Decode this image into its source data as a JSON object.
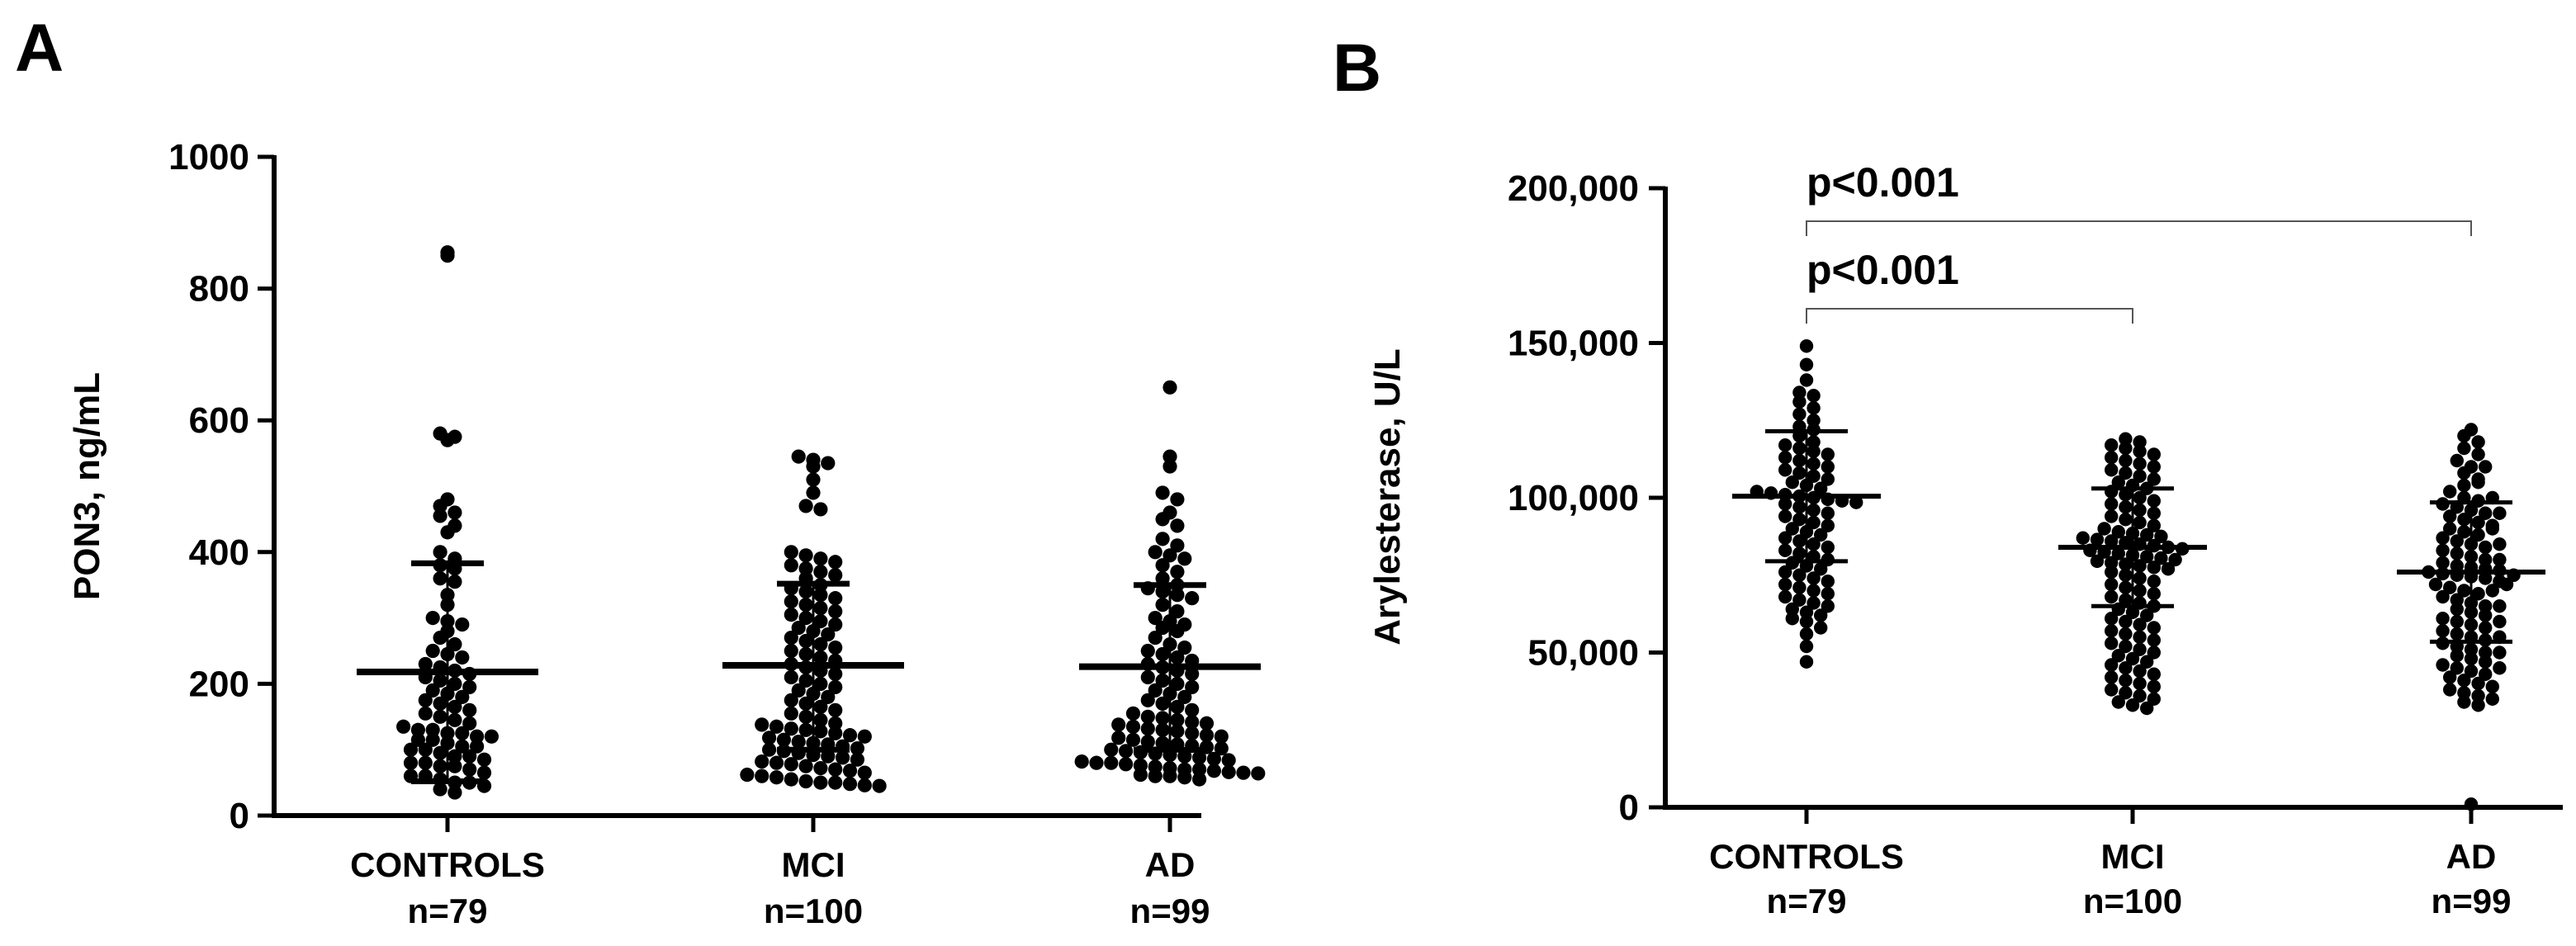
{
  "figure": {
    "panel_a_label": "A",
    "panel_b_label": "B"
  },
  "chart_data": [
    {
      "type": "scatter",
      "panel": "A",
      "title": "",
      "xlabel": "",
      "ylabel": "PON3, ng/mL",
      "ylim": [
        0,
        1000
      ],
      "yticks": [
        0,
        200,
        400,
        600,
        800,
        1000
      ],
      "ytick_labels": [
        "0",
        "200",
        "400",
        "600",
        "800",
        "1000"
      ],
      "categories": [
        "CONTROLS",
        "MCI",
        "AD"
      ],
      "n_labels": [
        "n=79",
        "n=100",
        "n=99"
      ],
      "groups": [
        {
          "name": "CONTROLS",
          "n": 79,
          "mean": 218,
          "sd_upper": 383,
          "sd_lower": 52,
          "values": [
            855,
            850,
            580,
            575,
            570,
            480,
            470,
            460,
            455,
            440,
            430,
            400,
            390,
            380,
            375,
            360,
            355,
            335,
            320,
            300,
            295,
            290,
            280,
            270,
            260,
            250,
            245,
            240,
            230,
            225,
            220,
            215,
            210,
            205,
            200,
            195,
            190,
            185,
            180,
            175,
            170,
            165,
            160,
            155,
            150,
            145,
            140,
            135,
            130,
            130,
            125,
            125,
            120,
            120,
            115,
            115,
            110,
            105,
            105,
            100,
            100,
            95,
            90,
            90,
            85,
            80,
            80,
            75,
            75,
            70,
            65,
            60,
            60,
            55,
            50,
            50,
            45,
            40,
            35
          ]
        },
        {
          "name": "MCI",
          "n": 100,
          "mean": 228,
          "sd_upper": 352,
          "sd_lower": 100,
          "values": [
            545,
            540,
            535,
            530,
            510,
            490,
            470,
            465,
            400,
            395,
            390,
            385,
            380,
            375,
            370,
            365,
            360,
            350,
            345,
            340,
            335,
            330,
            325,
            320,
            315,
            310,
            305,
            300,
            295,
            290,
            285,
            280,
            275,
            270,
            265,
            260,
            255,
            250,
            245,
            240,
            235,
            230,
            225,
            220,
            215,
            210,
            205,
            200,
            195,
            190,
            185,
            180,
            175,
            170,
            165,
            160,
            155,
            150,
            145,
            140,
            138,
            135,
            132,
            130,
            128,
            125,
            122,
            120,
            118,
            115,
            112,
            110,
            108,
            105,
            102,
            100,
            98,
            95,
            92,
            90,
            88,
            85,
            82,
            80,
            78,
            75,
            72,
            70,
            68,
            65,
            62,
            60,
            58,
            55,
            52,
            50,
            50,
            48,
            46,
            45
          ]
        },
        {
          "name": "AD",
          "n": 99,
          "mean": 226,
          "sd_upper": 350,
          "sd_lower": 100,
          "values": [
            650,
            545,
            530,
            490,
            480,
            460,
            450,
            440,
            420,
            410,
            400,
            395,
            390,
            380,
            370,
            360,
            350,
            345,
            340,
            335,
            330,
            320,
            310,
            300,
            295,
            290,
            285,
            280,
            270,
            260,
            255,
            250,
            245,
            240,
            235,
            230,
            225,
            220,
            215,
            210,
            205,
            200,
            195,
            190,
            185,
            180,
            175,
            170,
            165,
            160,
            155,
            150,
            148,
            145,
            142,
            140,
            138,
            135,
            132,
            130,
            128,
            125,
            122,
            120,
            118,
            115,
            112,
            110,
            108,
            106,
            104,
            102,
            100,
            98,
            96,
            94,
            92,
            90,
            88,
            86,
            84,
            82,
            80,
            80,
            78,
            76,
            74,
            72,
            70,
            70,
            68,
            66,
            65,
            64,
            62,
            60,
            60,
            58,
            55
          ]
        }
      ]
    },
    {
      "type": "scatter",
      "panel": "B",
      "title": "",
      "xlabel": "",
      "ylabel": "Arylesterase, U/L",
      "ylim": [
        0,
        200000
      ],
      "yticks": [
        0,
        50000,
        100000,
        150000,
        200000
      ],
      "ytick_labels": [
        "0",
        "50,000",
        "100,000",
        "150,000",
        "200,000"
      ],
      "categories": [
        "CONTROLS",
        "MCI",
        "AD"
      ],
      "n_labels": [
        "n=79",
        "n=100",
        "n=99"
      ],
      "annotations": [
        {
          "text": "p<0.001",
          "from": "CONTROLS",
          "to": "AD"
        },
        {
          "text": "p<0.001",
          "from": "CONTROLS",
          "to": "MCI"
        }
      ],
      "groups": [
        {
          "name": "CONTROLS",
          "n": 79,
          "mean": 100500,
          "sd_upper": 121500,
          "sd_lower": 79500,
          "values": [
            149000,
            143000,
            138000,
            134000,
            133000,
            131000,
            129000,
            127000,
            125000,
            123000,
            122000,
            120000,
            118000,
            117000,
            116000,
            115000,
            114000,
            113000,
            112000,
            111000,
            110000,
            109000,
            108000,
            107000,
            106000,
            105000,
            104000,
            103000,
            102000,
            101500,
            101000,
            100500,
            100000,
            99500,
            99000,
            98500,
            98000,
            97000,
            96000,
            95000,
            94000,
            93000,
            92000,
            91000,
            90000,
            89000,
            88000,
            87000,
            86000,
            85000,
            84000,
            83000,
            82000,
            81000,
            80000,
            79000,
            78000,
            77000,
            76000,
            75000,
            74000,
            73000,
            72000,
            71000,
            70000,
            69000,
            68000,
            67000,
            66000,
            65000,
            64000,
            63000,
            62000,
            61000,
            60000,
            58000,
            56000,
            52000,
            47000
          ]
        },
        {
          "name": "MCI",
          "n": 100,
          "mean": 84000,
          "sd_upper": 103000,
          "sd_lower": 65000,
          "values": [
            119000,
            118000,
            117000,
            116000,
            115000,
            114000,
            113000,
            112000,
            111000,
            110000,
            109000,
            108000,
            107000,
            106000,
            105000,
            104000,
            103000,
            102000,
            101000,
            100000,
            99000,
            98000,
            97000,
            96000,
            95000,
            94000,
            93000,
            92000,
            91000,
            90000,
            89000,
            88500,
            88000,
            87500,
            87000,
            86500,
            86000,
            85500,
            85000,
            84500,
            84000,
            83500,
            83000,
            82500,
            82000,
            81500,
            81000,
            80500,
            80000,
            79500,
            79000,
            78500,
            78000,
            77500,
            77000,
            76000,
            75000,
            74000,
            73000,
            72000,
            71000,
            70000,
            69000,
            68000,
            67000,
            66000,
            65000,
            64000,
            63000,
            62000,
            61000,
            60000,
            59000,
            58000,
            57000,
            56000,
            55000,
            54000,
            53000,
            52000,
            51000,
            50000,
            49000,
            48000,
            47000,
            46000,
            45000,
            44000,
            43000,
            42000,
            41000,
            40000,
            39000,
            38000,
            37000,
            36000,
            35000,
            34000,
            33000,
            32000
          ]
        },
        {
          "name": "AD",
          "n": 99,
          "mean": 76000,
          "sd_upper": 98500,
          "sd_lower": 53500,
          "values": [
            122000,
            120000,
            118000,
            116000,
            114000,
            112000,
            110000,
            108000,
            106000,
            104000,
            102000,
            100000,
            99000,
            98000,
            97000,
            96000,
            95000,
            94000,
            93000,
            92000,
            91000,
            90000,
            89000,
            88000,
            87000,
            86000,
            85000,
            84000,
            83000,
            82000,
            81000,
            80000,
            79000,
            78000,
            77500,
            77000,
            76500,
            76000,
            75500,
            75000,
            74500,
            74000,
            73000,
            72000,
            71000,
            70000,
            69000,
            68000,
            67000,
            66000,
            65000,
            64000,
            63000,
            62000,
            61000,
            60000,
            59000,
            58000,
            57000,
            56000,
            55000,
            54000,
            53000,
            52000,
            51000,
            50000,
            49000,
            48000,
            47000,
            46000,
            45000,
            44000,
            43000,
            42000,
            41000,
            40000,
            39000,
            38000,
            37000,
            36000,
            35000,
            34000,
            33000,
            80000,
            70000,
            90000,
            60000,
            100000,
            85000,
            75000,
            65000,
            95000,
            55000,
            105000,
            45000,
            110000,
            50000,
            72000,
            1000
          ]
        }
      ]
    }
  ]
}
